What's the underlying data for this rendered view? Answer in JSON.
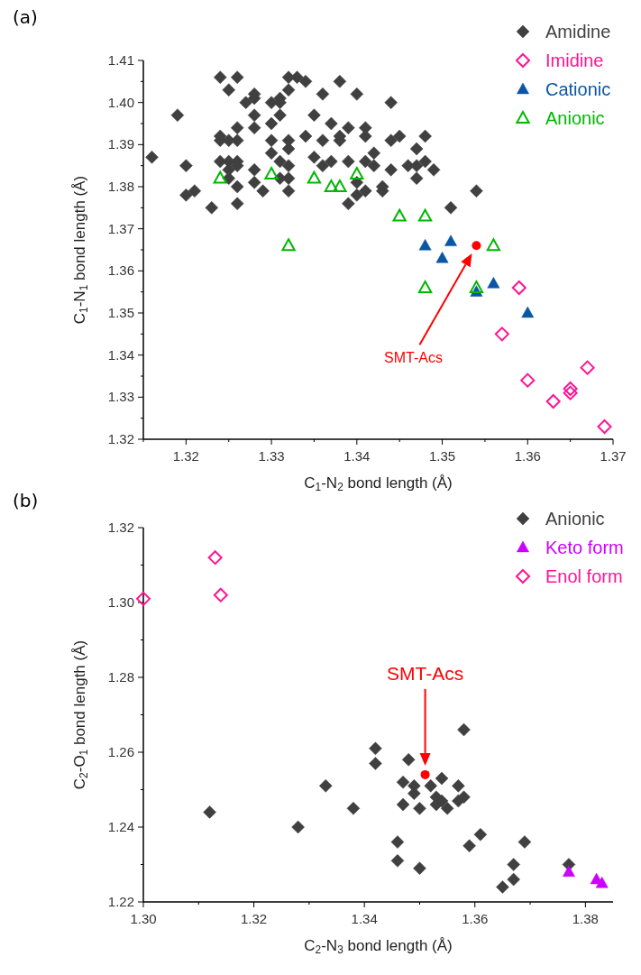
{
  "chart_data": [
    {
      "type": "scatter",
      "title": "(a)",
      "xlabel": "C$_{1}$-N$_{2}$ bond length (Å)",
      "ylabel": "C$_{1}$-N$_{1}$ bond length (Å)",
      "xlim": [
        1.315,
        1.37
      ],
      "ylim": [
        1.32,
        1.41
      ],
      "xticks": [
        {
          "value": 1.315,
          "label": null
        },
        1.32,
        {
          "value": 1.325,
          "label": null
        },
        1.33,
        {
          "value": 1.335,
          "label": null
        },
        1.34,
        {
          "value": 1.345,
          "label": null
        },
        1.35,
        {
          "value": 1.355,
          "label": null
        },
        1.36,
        {
          "value": 1.365,
          "label": null
        },
        1.37
      ],
      "yticks": [
        1.32,
        {
          "value": 1.325,
          "label": null
        },
        1.33,
        {
          "value": 1.335,
          "label": null
        },
        1.34,
        {
          "value": 1.345,
          "label": null
        },
        1.35,
        {
          "value": 1.355,
          "label": null
        },
        1.36,
        {
          "value": 1.365,
          "label": null
        },
        1.37,
        {
          "value": 1.375,
          "label": null
        },
        1.38,
        {
          "value": 1.385,
          "label": null
        },
        1.39,
        {
          "value": 1.395,
          "label": null
        },
        {
          "value": 1.4,
          "label": "1.40"
        },
        {
          "value": 1.405,
          "label": null
        },
        1.41
      ],
      "legend": "top right",
      "annotations": [
        "SMT-Acs"
      ],
      "series": [
        {
          "name": "Amidine",
          "color": "#404040",
          "marker": "diamond",
          "x": [
            1.316,
            1.319,
            1.32,
            1.32,
            1.321,
            1.323,
            1.324,
            1.324,
            1.324,
            1.324,
            1.325,
            1.325,
            1.325,
            1.325,
            1.325,
            1.326,
            1.326,
            1.326,
            1.326,
            1.326,
            1.326,
            1.326,
            1.327,
            1.328,
            1.328,
            1.328,
            1.328,
            1.328,
            1.328,
            1.329,
            1.33,
            1.33,
            1.33,
            1.33,
            1.331,
            1.331,
            1.331,
            1.331,
            1.331,
            1.332,
            1.332,
            1.332,
            1.332,
            1.332,
            1.332,
            1.332,
            1.333,
            1.334,
            1.334,
            1.335,
            1.335,
            1.336,
            1.336,
            1.336,
            1.337,
            1.337,
            1.338,
            1.338,
            1.338,
            1.339,
            1.339,
            1.339,
            1.34,
            1.34,
            1.34,
            1.341,
            1.341,
            1.341,
            1.341,
            1.342,
            1.342,
            1.343,
            1.343,
            1.344,
            1.344,
            1.344,
            1.345,
            1.346,
            1.347,
            1.347,
            1.347,
            1.348,
            1.348,
            1.349,
            1.351,
            1.354
          ],
          "values": [
            1.387,
            1.397,
            1.385,
            1.378,
            1.379,
            1.375,
            1.406,
            1.392,
            1.391,
            1.386,
            1.403,
            1.391,
            1.386,
            1.384,
            1.382,
            1.406,
            1.394,
            1.391,
            1.386,
            1.385,
            1.38,
            1.376,
            1.4,
            1.402,
            1.401,
            1.397,
            1.394,
            1.384,
            1.381,
            1.379,
            1.4,
            1.395,
            1.391,
            1.388,
            1.401,
            1.4,
            1.397,
            1.386,
            1.382,
            1.406,
            1.403,
            1.391,
            1.389,
            1.385,
            1.382,
            1.379,
            1.406,
            1.405,
            1.392,
            1.397,
            1.387,
            1.402,
            1.391,
            1.385,
            1.395,
            1.386,
            1.405,
            1.392,
            1.391,
            1.394,
            1.386,
            1.376,
            1.402,
            1.381,
            1.378,
            1.394,
            1.392,
            1.386,
            1.379,
            1.388,
            1.385,
            1.38,
            1.379,
            1.4,
            1.391,
            1.384,
            1.392,
            1.385,
            1.389,
            1.385,
            1.382,
            1.392,
            1.386,
            1.384,
            1.375,
            1.379
          ]
        },
        {
          "name": "Imidine",
          "color": "#ff1493",
          "marker": "diamond",
          "x": [
            1.359,
            1.357,
            1.36,
            1.363,
            1.365,
            1.365,
            1.367,
            1.369
          ],
          "values": [
            1.356,
            1.345,
            1.334,
            1.329,
            1.331,
            1.332,
            1.337,
            1.323
          ]
        },
        {
          "name": "Cationic",
          "color": "#0b56a4",
          "marker": "triangle",
          "x": [
            1.348,
            1.351,
            1.35,
            1.354,
            1.356,
            1.36
          ],
          "values": [
            1.366,
            1.367,
            1.363,
            1.355,
            1.357,
            1.35
          ]
        },
        {
          "name": "Anionic",
          "color": "#00b800",
          "marker": "triangle",
          "x": [
            1.324,
            1.33,
            1.332,
            1.335,
            1.337,
            1.338,
            1.34,
            1.345,
            1.348,
            1.348,
            1.354,
            1.356
          ],
          "values": [
            1.382,
            1.383,
            1.366,
            1.382,
            1.38,
            1.38,
            1.383,
            1.373,
            1.373,
            1.356,
            1.356,
            1.366
          ]
        },
        {
          "color": "#ff0000",
          "marker": "circle",
          "x": [
            1.354
          ],
          "values": [
            1.366
          ]
        }
      ]
    },
    {
      "type": "scatter",
      "title": "(b)",
      "xlabel": "C$_{2}$-N$_{3}$ bond length (Å)",
      "ylabel": "C$_{2}$-O$_{1}$ bond length (Å)",
      "xlim": [
        1.3,
        1.385
      ],
      "ylim": [
        1.22,
        1.32
      ],
      "xticks": [
        {
          "value": 1.3,
          "label": "1.30"
        },
        {
          "value": 1.31,
          "label": null
        },
        1.32,
        {
          "value": 1.33,
          "label": null
        },
        1.34,
        {
          "value": 1.35,
          "label": null
        },
        1.36,
        {
          "value": 1.37,
          "label": null
        },
        1.38
      ],
      "yticks": [
        1.22,
        {
          "value": 1.23,
          "label": null
        },
        1.24,
        {
          "value": 1.25,
          "label": null
        },
        1.26,
        {
          "value": 1.27,
          "label": null
        },
        1.28,
        {
          "value": 1.29,
          "label": null
        },
        {
          "value": 1.3,
          "label": "1.30"
        },
        {
          "value": 1.31,
          "label": null
        },
        1.32
      ],
      "legend": "top right",
      "annotations": [
        "SMT-Acs"
      ],
      "series": [
        {
          "name": "Anionic",
          "color": "#404040",
          "marker": "diamond",
          "x": [
            1.312,
            1.328,
            1.333,
            1.338,
            1.342,
            1.342,
            1.348,
            1.358,
            1.347,
            1.349,
            1.349,
            1.347,
            1.35,
            1.354,
            1.352,
            1.353,
            1.354,
            1.353,
            1.357,
            1.358,
            1.357,
            1.355,
            1.346,
            1.346,
            1.35,
            1.359,
            1.361,
            1.369,
            1.367,
            1.367,
            1.365,
            1.377
          ],
          "values": [
            1.244,
            1.24,
            1.251,
            1.245,
            1.261,
            1.257,
            1.258,
            1.266,
            1.252,
            1.251,
            1.249,
            1.246,
            1.245,
            1.253,
            1.251,
            1.248,
            1.247,
            1.246,
            1.251,
            1.248,
            1.247,
            1.245,
            1.236,
            1.231,
            1.229,
            1.235,
            1.238,
            1.236,
            1.23,
            1.226,
            1.224,
            1.23
          ]
        },
        {
          "name": "Keto form",
          "color": "#cc00ff",
          "marker": "triangle",
          "x": [
            1.377,
            1.382,
            1.383
          ],
          "values": [
            1.228,
            1.226,
            1.225
          ]
        },
        {
          "name": "Enol form",
          "color": "#ff1493",
          "marker": "diamond",
          "x": [
            1.3,
            1.313,
            1.314
          ],
          "values": [
            1.301,
            1.312,
            1.302
          ]
        },
        {
          "color": "#ff0000",
          "marker": "circle",
          "x": [
            1.351
          ],
          "values": [
            1.254
          ]
        }
      ]
    }
  ]
}
